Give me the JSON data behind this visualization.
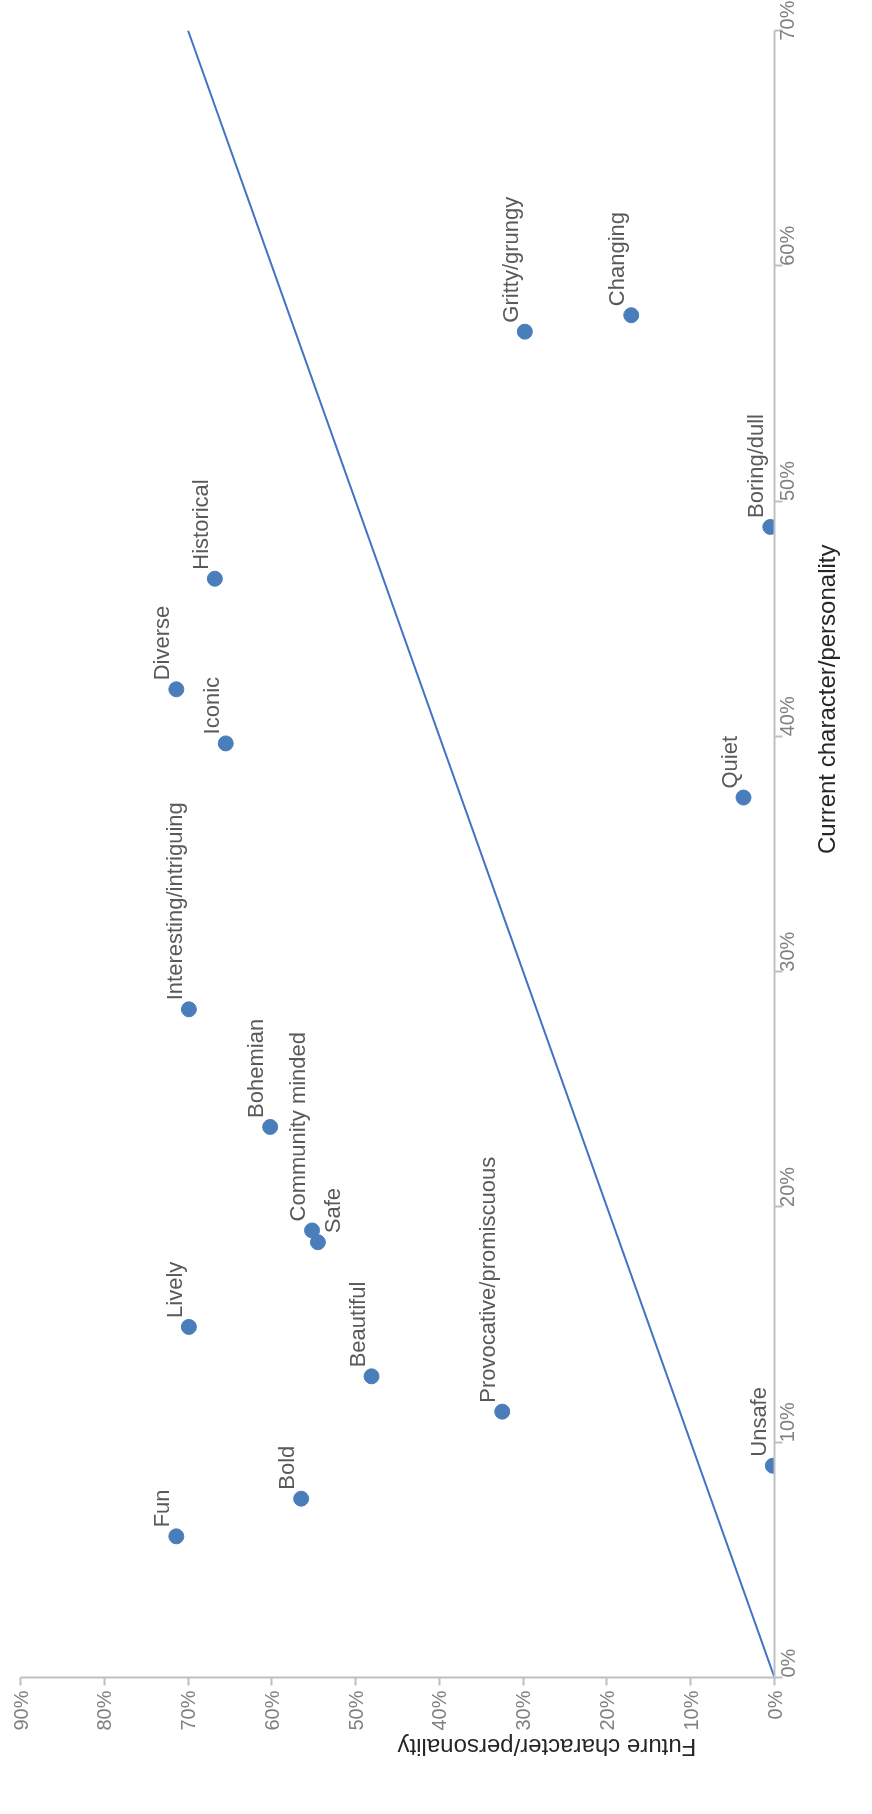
{
  "chart_data": {
    "type": "scatter",
    "xlabel": "Future character/personality",
    "ylabel": "Current character/personality",
    "x": [
      71.4,
      56.5,
      69.9,
      48.1,
      32.5,
      0.2,
      55.2,
      54.5,
      60.2,
      69.9,
      3.7,
      65.5,
      71.4,
      66.8,
      0.5,
      29.8,
      17.1
    ],
    "series": [
      {
        "color": "#4a7ebb",
        "marker": "circle",
        "values": [
          6.0,
          7.6,
          14.9,
          12.8,
          11.3,
          9.0,
          19.0,
          18.5,
          23.4,
          28.4,
          37.4,
          39.7,
          42.0,
          46.7,
          48.9,
          57.2,
          57.9
        ]
      },
      {
        "type": "line",
        "color": "#4472c4",
        "x": [
          0,
          70
        ],
        "values": [
          0,
          70
        ],
        "marker": "none"
      }
    ],
    "annotations": [
      {
        "text": "Fun",
        "x": 71.4,
        "y": 6.0
      },
      {
        "text": "Bold",
        "x": 56.5,
        "y": 7.6
      },
      {
        "text": "Lively",
        "x": 69.9,
        "y": 14.9
      },
      {
        "text": "Beautiful",
        "x": 48.1,
        "y": 12.8
      },
      {
        "text": "Provocative/promiscuous",
        "x": 32.5,
        "y": 11.3
      },
      {
        "text": "Unsafe",
        "x": 0.2,
        "y": 9.0
      },
      {
        "text": "Community minded",
        "x": 55.2,
        "y": 19.0
      },
      {
        "text": "Safe",
        "x": 54.5,
        "y": 18.5
      },
      {
        "text": "Bohemian",
        "x": 60.2,
        "y": 23.4
      },
      {
        "text": "Interesting/intriguing",
        "x": 69.9,
        "y": 28.4
      },
      {
        "text": "Quiet",
        "x": 3.7,
        "y": 37.4
      },
      {
        "text": "Iconic",
        "x": 65.5,
        "y": 39.7
      },
      {
        "text": "Diverse",
        "x": 71.4,
        "y": 42.0
      },
      {
        "text": "Historical",
        "x": 66.8,
        "y": 46.7
      },
      {
        "text": "Boring/dull",
        "x": 0.5,
        "y": 48.9
      },
      {
        "text": "Gritty/grungy",
        "x": 29.8,
        "y": 57.2
      },
      {
        "text": "Changing",
        "x": 17.1,
        "y": 57.9
      }
    ],
    "xlim": [
      90,
      0
    ],
    "xticks": [
      {
        "value": 0,
        "label": "0%"
      },
      {
        "value": 10,
        "label": "10%"
      },
      {
        "value": 20,
        "label": "20%"
      },
      {
        "value": 30,
        "label": "30%"
      },
      {
        "value": 40,
        "label": "40%"
      },
      {
        "value": 50,
        "label": "50%"
      },
      {
        "value": 60,
        "label": "60%"
      },
      {
        "value": 70,
        "label": "70%"
      },
      {
        "value": 80,
        "label": "80%"
      },
      {
        "value": 90,
        "label": "90%"
      }
    ],
    "ylim": [
      0,
      70
    ],
    "yticks": [
      {
        "value": 0,
        "label": "0%"
      },
      {
        "value": 10,
        "label": "10%"
      },
      {
        "value": 20,
        "label": "20%"
      },
      {
        "value": 30,
        "label": "30%"
      },
      {
        "value": 40,
        "label": "40%"
      },
      {
        "value": 50,
        "label": "50%"
      },
      {
        "value": 60,
        "label": "60%"
      },
      {
        "value": 70,
        "label": "70%"
      }
    ],
    "grid": false,
    "line_style": "solid"
  }
}
